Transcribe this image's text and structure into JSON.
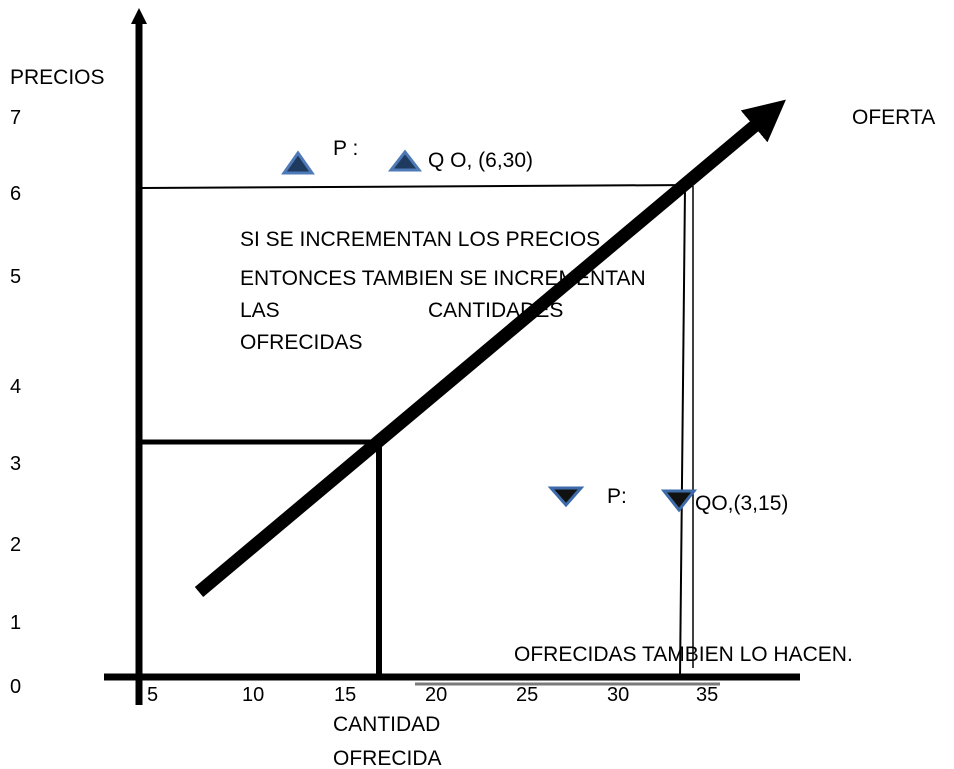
{
  "y_axis": {
    "title": "PRECIOS",
    "ticks": [
      "7",
      "6",
      "5",
      "4",
      "3",
      "2",
      "1",
      "0"
    ]
  },
  "x_axis": {
    "ticks": [
      "5",
      "10",
      "15",
      "20",
      "25",
      "30",
      "35"
    ],
    "title_line1": "CANTIDAD",
    "title_line2": "OFRECIDA"
  },
  "curve_label": "OFERTA",
  "legend_up": {
    "p_label": "P :",
    "q_label": "Q O,  (6,30)"
  },
  "legend_down": {
    "p_label": "P:",
    "q_label": "QO,(3,15)"
  },
  "text_block": {
    "line1": "SI SE INCREMENTAN LOS PRECIOS",
    "line2": "ENTONCES TAMBIEN SE INCREMENTAN",
    "line3a": "LAS",
    "line3b": "CANTIDADES",
    "line4": "OFRECIDAS"
  },
  "bottom_note": "OFRECIDAS TAMBIEN LO HACEN.",
  "colors": {
    "triangle_up_fill": "#1f3a5f",
    "triangle_up_stroke": "#4f7ab8",
    "triangle_down_fill": "#111111",
    "triangle_down_stroke": "#3d6aa8",
    "line": "#000000",
    "grey_line": "#7a7a7a"
  }
}
